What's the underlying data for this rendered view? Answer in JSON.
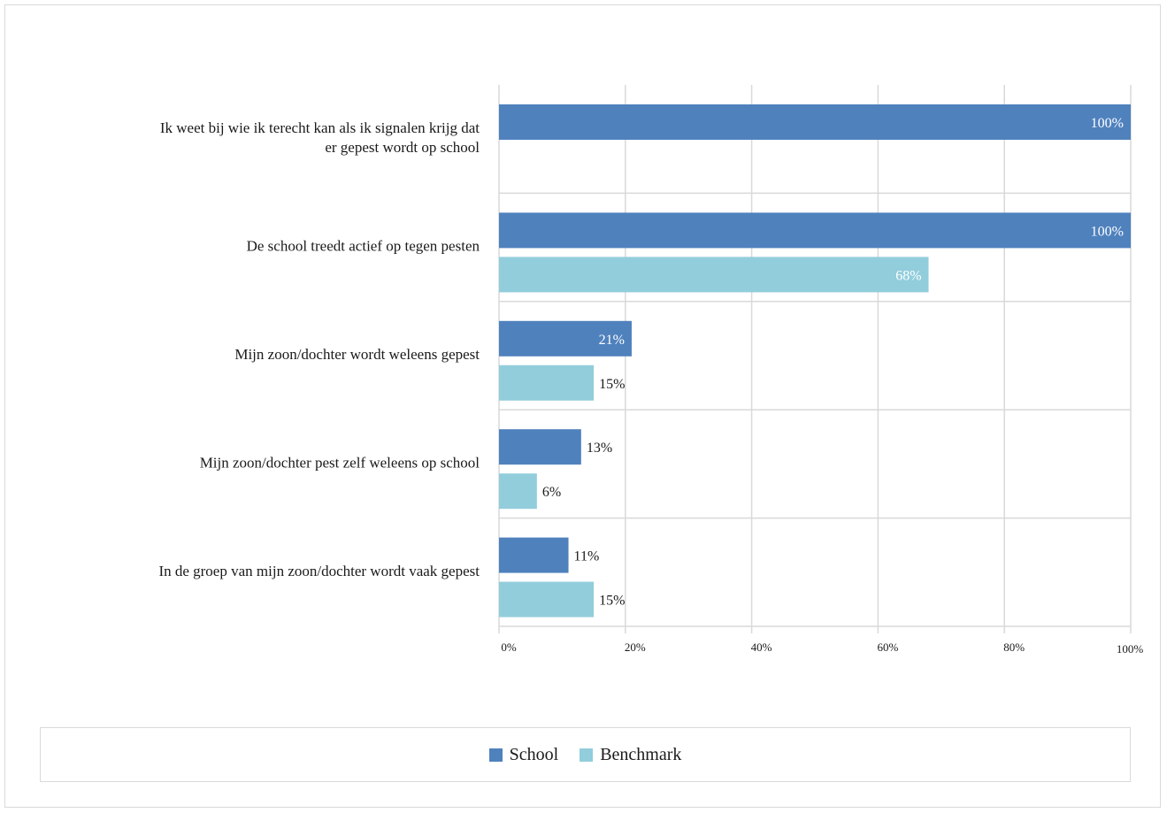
{
  "chart_data": {
    "type": "bar",
    "orientation": "horizontal",
    "categories": [
      [
        "Ik weet bij wie ik terecht kan als ik signalen krijg dat",
        "er gepest wordt op school"
      ],
      [
        "De school treedt actief op tegen pesten"
      ],
      [
        "Mijn zoon/dochter wordt weleens gepest"
      ],
      [
        "Mijn zoon/dochter pest zelf weleens op school"
      ],
      [
        "In de groep van mijn zoon/dochter wordt vaak gepest"
      ]
    ],
    "series": [
      {
        "name": "School",
        "color": "#4f81bd",
        "values": [
          100,
          100,
          21,
          13,
          11
        ],
        "labels": [
          "100%",
          "100%",
          "21%",
          "13%",
          "11%"
        ]
      },
      {
        "name": "Benchmark",
        "color": "#92cddc",
        "values": [
          null,
          68,
          15,
          6,
          15
        ],
        "labels": [
          "",
          "68%",
          "15%",
          "6%",
          "15%"
        ]
      }
    ],
    "xlim": [
      0,
      100
    ],
    "x_ticks": [
      "0%",
      "20%",
      "40%",
      "60%",
      "80%",
      "100%"
    ],
    "grid": true,
    "legend_position": "bottom"
  }
}
